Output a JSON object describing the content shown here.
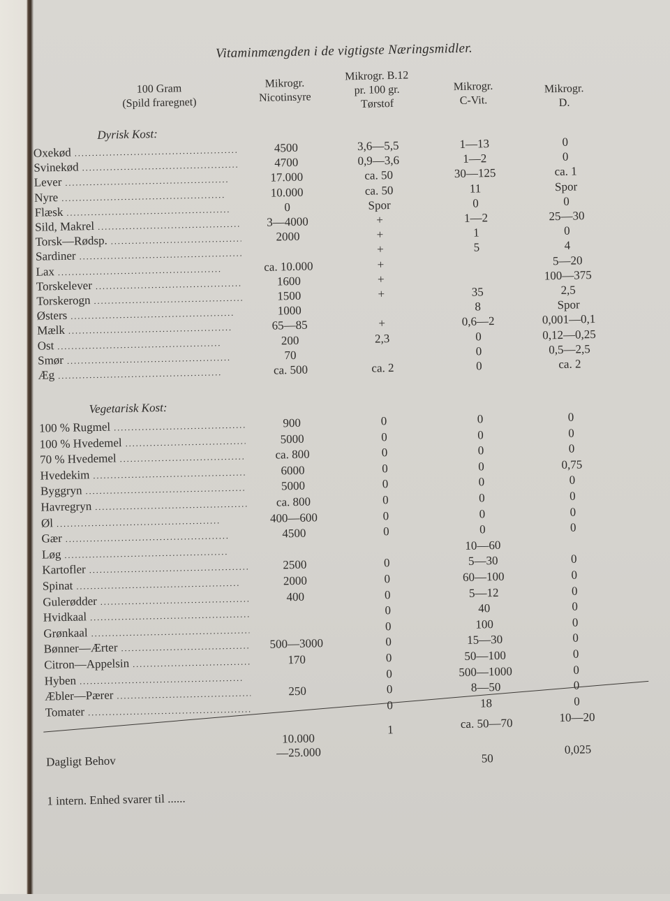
{
  "title": "Vitaminmængden i de vigtigste Næringsmidler.",
  "headers": {
    "label": [
      "100 Gram",
      "(Spild fraregnet)"
    ],
    "nicotinsyre": [
      "Mikrogr.",
      "Nicotinsyre"
    ],
    "b12": [
      "Mikrogr. B.12",
      "pr. 100 gr.",
      "Tørstof"
    ],
    "c_vit": [
      "Mikrogr.",
      "C-Vit."
    ],
    "d_vit": [
      "Mikrogr.",
      "D."
    ]
  },
  "sections": [
    {
      "title": "Dyrisk Kost:",
      "rows": [
        {
          "label": "Oxekød",
          "values": [
            "4500",
            "3,6—5,5",
            "1—13",
            "0"
          ]
        },
        {
          "label": "Svinekød",
          "values": [
            "4700",
            "0,9—3,6",
            "1—2",
            "0"
          ]
        },
        {
          "label": "Lever",
          "values": [
            "17.000",
            "ca. 50",
            "30—125",
            "ca. 1"
          ]
        },
        {
          "label": "Nyre",
          "values": [
            "10.000",
            "ca. 50",
            "11",
            "Spor"
          ]
        },
        {
          "label": "Flæsk",
          "values": [
            "0",
            "Spor",
            "0",
            "0"
          ]
        },
        {
          "label": "Sild, Makrel",
          "values": [
            "3—4000",
            "+",
            "1—2",
            "25—30"
          ]
        },
        {
          "label": "Torsk—Rødsp.",
          "values": [
            "2000",
            "+",
            "1",
            "0"
          ]
        },
        {
          "label": "Sardiner",
          "values": [
            "",
            "+",
            "5",
            "4"
          ]
        },
        {
          "label": "Lax",
          "values": [
            "ca. 10.000",
            "+",
            "",
            "5—20"
          ]
        },
        {
          "label": "Torskelever",
          "values": [
            "1600",
            "+",
            "",
            "100—375"
          ]
        },
        {
          "label": "Torskerogn",
          "values": [
            "1500",
            "+",
            "35",
            "2,5"
          ]
        },
        {
          "label": "Østers",
          "values": [
            "1000",
            "",
            "8",
            "Spor"
          ]
        },
        {
          "label": "Mælk",
          "values": [
            "65—85",
            "+",
            "0,6—2",
            "0,001—0,1"
          ]
        },
        {
          "label": "Ost",
          "values": [
            "200",
            "2,3",
            "0",
            "0,12—0,25"
          ]
        },
        {
          "label": "Smør",
          "values": [
            "70",
            "",
            "0",
            "0,5—2,5"
          ]
        },
        {
          "label": "Æg",
          "values": [
            "ca. 500",
            "ca. 2",
            "0",
            "ca. 2"
          ]
        }
      ]
    },
    {
      "title": "Vegetarisk Kost:",
      "rows": [
        {
          "label": "100 % Rugmel",
          "values": [
            "900",
            "0",
            "0",
            "0"
          ]
        },
        {
          "label": "100 % Hvedemel",
          "values": [
            "5000",
            "0",
            "0",
            "0"
          ]
        },
        {
          "label": "70 % Hvedemel",
          "values": [
            "ca. 800",
            "0",
            "0",
            "0"
          ]
        },
        {
          "label": "Hvedekim",
          "values": [
            "6000",
            "0",
            "0",
            "0,75"
          ]
        },
        {
          "label": "Byggryn",
          "values": [
            "5000",
            "0",
            "0",
            "0"
          ]
        },
        {
          "label": "Havregryn",
          "values": [
            "ca. 800",
            "0",
            "0",
            "0"
          ]
        },
        {
          "label": "Øl",
          "values": [
            "400—600",
            "0",
            "0",
            "0"
          ]
        },
        {
          "label": "Gær",
          "values": [
            "4500",
            "0",
            "0",
            "0"
          ]
        },
        {
          "label": "Løg",
          "values": [
            "",
            "",
            "10—60",
            ""
          ]
        },
        {
          "label": "Kartofler",
          "values": [
            "2500",
            "0",
            "5—30",
            "0"
          ]
        },
        {
          "label": "Spinat",
          "values": [
            "2000",
            "0",
            "60—100",
            "0"
          ]
        },
        {
          "label": "Gulerødder",
          "values": [
            "400",
            "0",
            "5—12",
            "0"
          ]
        },
        {
          "label": "Hvidkaal",
          "values": [
            "",
            "0",
            "40",
            "0"
          ]
        },
        {
          "label": "Grønkaal",
          "values": [
            "",
            "0",
            "100",
            "0"
          ]
        },
        {
          "label": "Bønner—Ærter",
          "values": [
            "500—3000",
            "0",
            "15—30",
            "0"
          ]
        },
        {
          "label": "Citron—Appelsin",
          "values": [
            "170",
            "0",
            "50—100",
            "0"
          ]
        },
        {
          "label": "Hyben",
          "values": [
            "",
            "0",
            "500—1000",
            "0"
          ]
        },
        {
          "label": "Æbler—Pærer",
          "values": [
            "250",
            "0",
            "8—50",
            "0"
          ]
        },
        {
          "label": "Tomater",
          "values": [
            "",
            "0",
            "18",
            "0"
          ]
        }
      ]
    }
  ],
  "daily_need": {
    "label": "Dagligt Behov",
    "nicotinsyre": [
      "10.000",
      "—25.000"
    ],
    "b12": "1",
    "c_vit": "ca. 50—70",
    "d_vit": "10—20"
  },
  "international_unit": {
    "label": "1 intern. Enhed svarer til ......",
    "c_vit": "50",
    "d_vit": "0,025"
  }
}
